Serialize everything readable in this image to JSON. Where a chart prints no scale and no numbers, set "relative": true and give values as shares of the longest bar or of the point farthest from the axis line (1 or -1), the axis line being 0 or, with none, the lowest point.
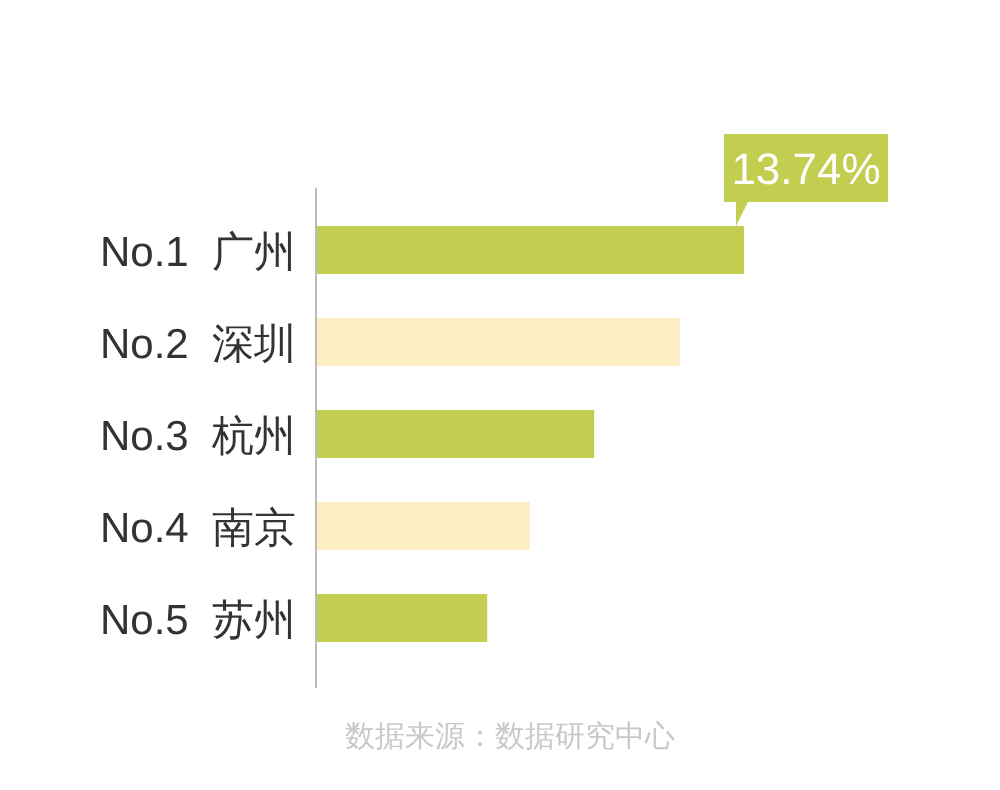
{
  "chart_data": {
    "type": "bar",
    "orientation": "horizontal",
    "relative": true,
    "categories": [
      "No.1  广州",
      "No.2  深圳",
      "No.3  杭州",
      "No.4  南京",
      "No.5  苏州"
    ],
    "values": [
      1,
      0.85,
      0.65,
      0.5,
      0.4
    ],
    "colors": [
      "#c3cd4f",
      "#fdeec3",
      "#c3cd4f",
      "#fdeec3",
      "#c3cd4f"
    ],
    "annotations": [
      {
        "text": "13.74%",
        "x": 1,
        "y": "No.1  广州"
      },
      "数据来源：数据研究中心"
    ]
  }
}
